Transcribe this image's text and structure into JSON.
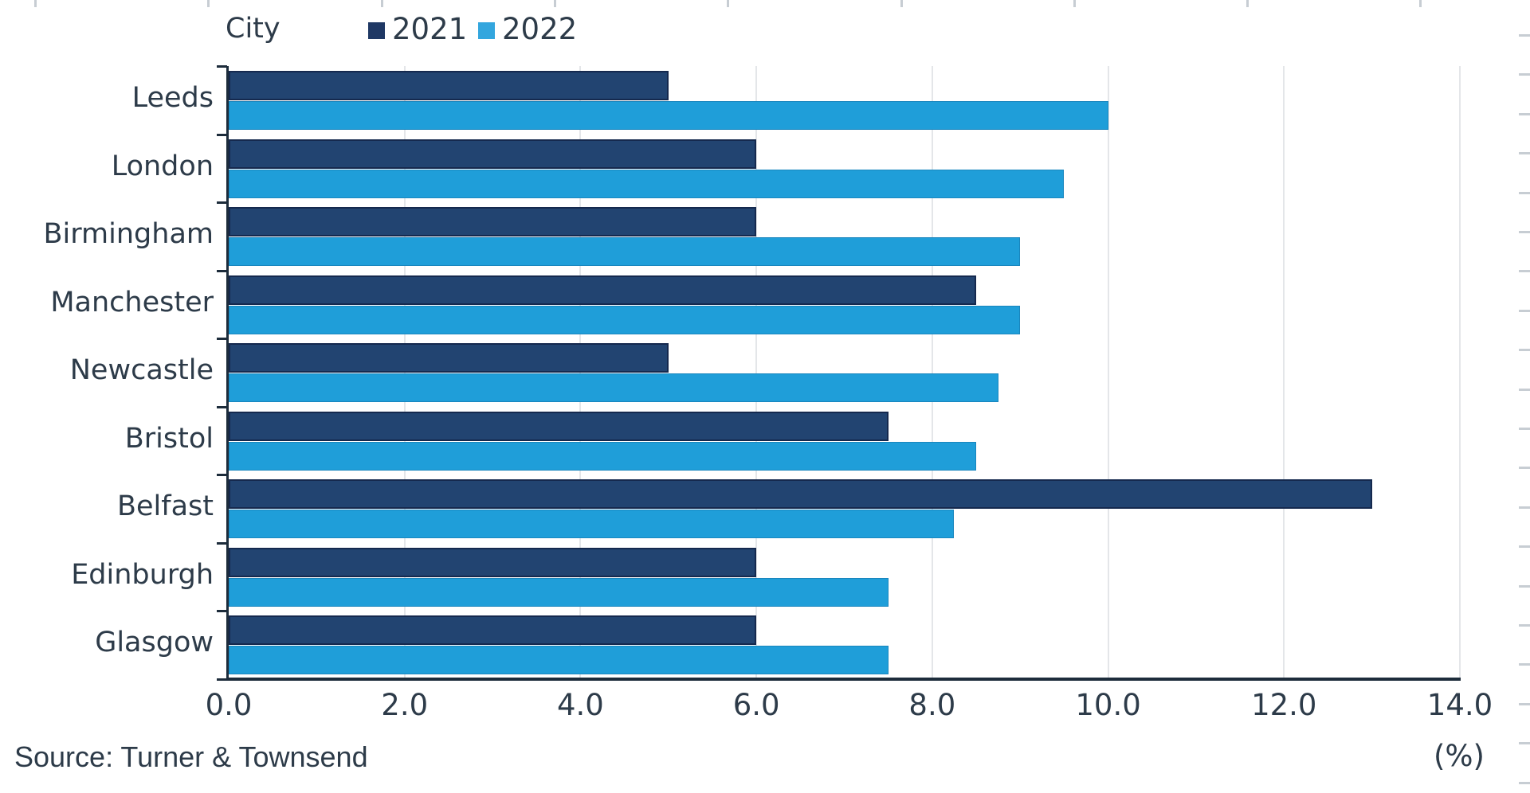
{
  "legend": {
    "axis_title": "City",
    "items": [
      {
        "label": "2021",
        "swatch_color": "#1F3864"
      },
      {
        "label": "2022",
        "swatch_color": "#33A6DE"
      }
    ]
  },
  "chart_data": {
    "type": "bar",
    "orientation": "horizontal",
    "title": "",
    "category_axis_title": "City",
    "categories": [
      "Leeds",
      "London",
      "Birmingham",
      "Manchester",
      "Newcastle",
      "Bristol",
      "Belfast",
      "Edinburgh",
      "Glasgow"
    ],
    "series": [
      {
        "name": "2021",
        "color": "#224471",
        "values": [
          5.0,
          6.0,
          6.0,
          8.5,
          5.0,
          7.5,
          13.0,
          6.0,
          6.0
        ]
      },
      {
        "name": "2022",
        "color": "#1F9ED9",
        "values": [
          10.0,
          9.5,
          9.0,
          9.0,
          8.75,
          8.5,
          8.25,
          7.5,
          7.5
        ]
      }
    ],
    "x_axis": {
      "min": 0,
      "max": 14,
      "tick_step": 2.0,
      "tick_labels": [
        "0.0",
        "2.0",
        "4.0",
        "6.0",
        "8.0",
        "10.0",
        "12.0",
        "14.0"
      ],
      "unit": "(%)"
    },
    "grid": "vertical-gridlines-on",
    "legend_position": "top"
  },
  "footer": {
    "source": "Source: Turner & Townsend",
    "unit": "(%)"
  }
}
